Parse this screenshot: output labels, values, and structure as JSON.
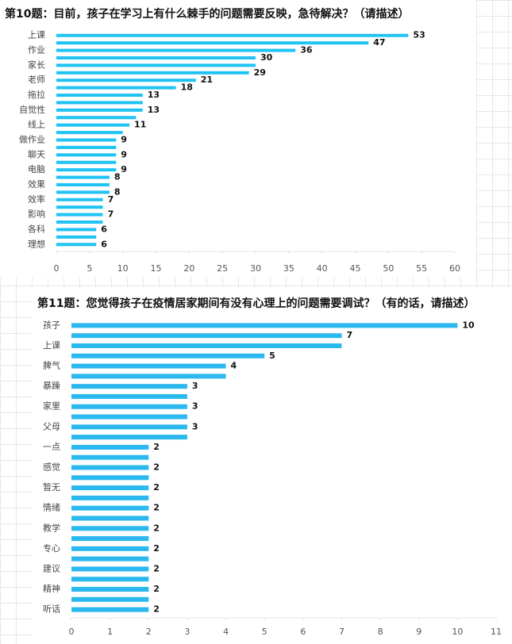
{
  "chart_data": [
    {
      "type": "bar",
      "orientation": "horizontal",
      "title": "第10题：目前，孩子在学习上有什么棘手的问题需要反映，急待解决？（请描述）",
      "categories": [
        "上课",
        null,
        "作业",
        null,
        "家长",
        null,
        "老师",
        null,
        "拖拉",
        null,
        "自觉性",
        null,
        "线上",
        null,
        "做作业",
        null,
        "聊天",
        null,
        "电脑",
        null,
        "效果",
        null,
        "效率",
        null,
        "影响",
        null,
        "各科",
        null,
        "理想"
      ],
      "values": [
        53,
        47,
        36,
        30,
        30,
        29,
        21,
        18,
        13,
        13,
        13,
        12,
        11,
        10,
        9,
        9,
        9,
        9,
        9,
        8,
        8,
        8,
        7,
        7,
        7,
        7,
        6,
        6,
        6
      ],
      "value_labels": [
        "53",
        "47",
        "36",
        "30",
        null,
        "29",
        "21",
        "18",
        "13",
        null,
        "13",
        null,
        "11",
        null,
        "9",
        null,
        "9",
        null,
        "9",
        "8",
        null,
        "8",
        "7",
        null,
        "7",
        null,
        "6",
        null,
        "6"
      ],
      "color": "#1fc3f3",
      "xlim": [
        0,
        60
      ],
      "xticks": [
        0,
        5,
        10,
        15,
        20,
        25,
        30,
        35,
        40,
        45,
        50,
        55,
        60
      ]
    },
    {
      "type": "bar",
      "orientation": "horizontal",
      "title": "第11题：您觉得孩子在疫情居家期间有没有心理上的问题需要调试？（有的话，请描述）",
      "categories": [
        "孩子",
        null,
        "上课",
        null,
        "脾气",
        null,
        "暴躁",
        null,
        "家里",
        null,
        "父母",
        null,
        "一点",
        null,
        "感觉",
        null,
        "暂无",
        null,
        "情绪",
        null,
        "教学",
        null,
        "专心",
        null,
        "建议",
        null,
        "精神",
        null,
        "听话"
      ],
      "values": [
        10,
        7,
        7,
        5,
        4,
        4,
        3,
        3,
        3,
        3,
        3,
        3,
        2,
        2,
        2,
        2,
        2,
        2,
        2,
        2,
        2,
        2,
        2,
        2,
        2,
        2,
        2,
        2,
        2
      ],
      "value_labels": [
        "10",
        "7",
        null,
        "5",
        "4",
        null,
        "3",
        null,
        "3",
        null,
        "3",
        null,
        "2",
        null,
        "2",
        null,
        "2",
        null,
        "2",
        null,
        "2",
        null,
        "2",
        null,
        "2",
        null,
        "2",
        null,
        "2"
      ],
      "color": "#2bb8ef",
      "xlim": [
        0,
        11
      ],
      "xticks": [
        0,
        1,
        2,
        3,
        4,
        5,
        6,
        7,
        8,
        9,
        10,
        11
      ]
    }
  ]
}
